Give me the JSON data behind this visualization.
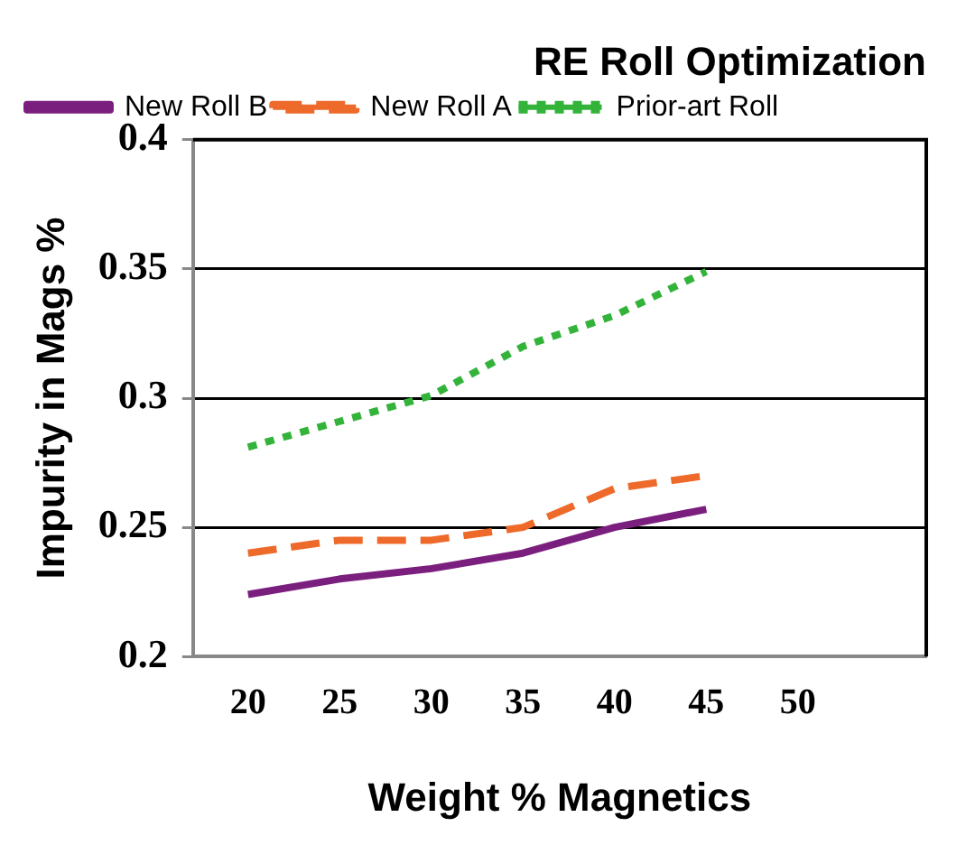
{
  "chart_data": {
    "type": "line",
    "title": "RE Roll Optimization",
    "xlabel": "Weight % Magnetics",
    "ylabel": "Impurity in Mags %",
    "x": [
      20,
      25,
      30,
      35,
      40,
      45
    ],
    "series": [
      {
        "name": "New Roll B",
        "color": "#7b1f7f",
        "line_style": "solid",
        "values": [
          0.224,
          0.23,
          0.234,
          0.24,
          0.25,
          0.257
        ]
      },
      {
        "name": "New Roll A",
        "color": "#ee6a2a",
        "line_style": "dashed",
        "values": [
          0.24,
          0.245,
          0.245,
          0.25,
          0.265,
          0.27
        ]
      },
      {
        "name": "Prior-art Roll",
        "color": "#33b33a",
        "line_style": "dotted",
        "values": [
          0.281,
          0.291,
          0.301,
          0.32,
          0.332,
          0.349
        ]
      }
    ],
    "xlim": [
      17,
      57
    ],
    "xticks": [
      20,
      25,
      30,
      35,
      40,
      45,
      50
    ],
    "ylim": [
      0.2,
      0.4
    ],
    "yticks": [
      0.2,
      0.25,
      0.3,
      0.35,
      0.4
    ],
    "grid": "y",
    "legend": "top left",
    "marker": "none"
  }
}
